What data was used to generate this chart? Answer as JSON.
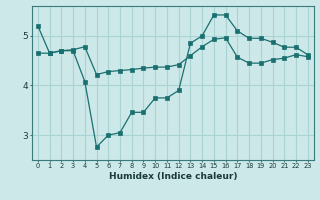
{
  "xlabel": "Humidex (Indice chaleur)",
  "ylabel": "",
  "background_color": "#cce8e8",
  "grid_color": "#aad4d4",
  "line_color": "#1a7070",
  "xlim": [
    -0.5,
    23.5
  ],
  "ylim": [
    2.5,
    5.6
  ],
  "xtick_labels": [
    "0",
    "1",
    "2",
    "3",
    "4",
    "5",
    "6",
    "7",
    "8",
    "9",
    "10",
    "11",
    "12",
    "13",
    "14",
    "15",
    "16",
    "17",
    "18",
    "19",
    "20",
    "21",
    "22",
    "23"
  ],
  "ytick_values": [
    3,
    4,
    5
  ],
  "line1_x": [
    0,
    1,
    2,
    3,
    4,
    5,
    6,
    7,
    8,
    9,
    10,
    11,
    12,
    13,
    14,
    15,
    16,
    17,
    18,
    19,
    20,
    21,
    22,
    23
  ],
  "line1_y": [
    5.2,
    4.65,
    4.7,
    4.7,
    4.08,
    2.76,
    3.0,
    3.05,
    3.46,
    3.46,
    3.75,
    3.75,
    3.9,
    4.85,
    5.0,
    5.42,
    5.42,
    5.1,
    4.95,
    4.95,
    4.87,
    4.77,
    4.77,
    4.62
  ],
  "line2_x": [
    0,
    1,
    2,
    3,
    4,
    5,
    6,
    7,
    8,
    9,
    10,
    11,
    12,
    13,
    14,
    15,
    16,
    17,
    18,
    19,
    20,
    21,
    22,
    23
  ],
  "line2_y": [
    4.65,
    4.65,
    4.7,
    4.72,
    4.78,
    4.22,
    4.28,
    4.3,
    4.32,
    4.35,
    4.37,
    4.37,
    4.42,
    4.6,
    4.78,
    4.93,
    4.96,
    4.57,
    4.45,
    4.45,
    4.52,
    4.55,
    4.62,
    4.58
  ]
}
